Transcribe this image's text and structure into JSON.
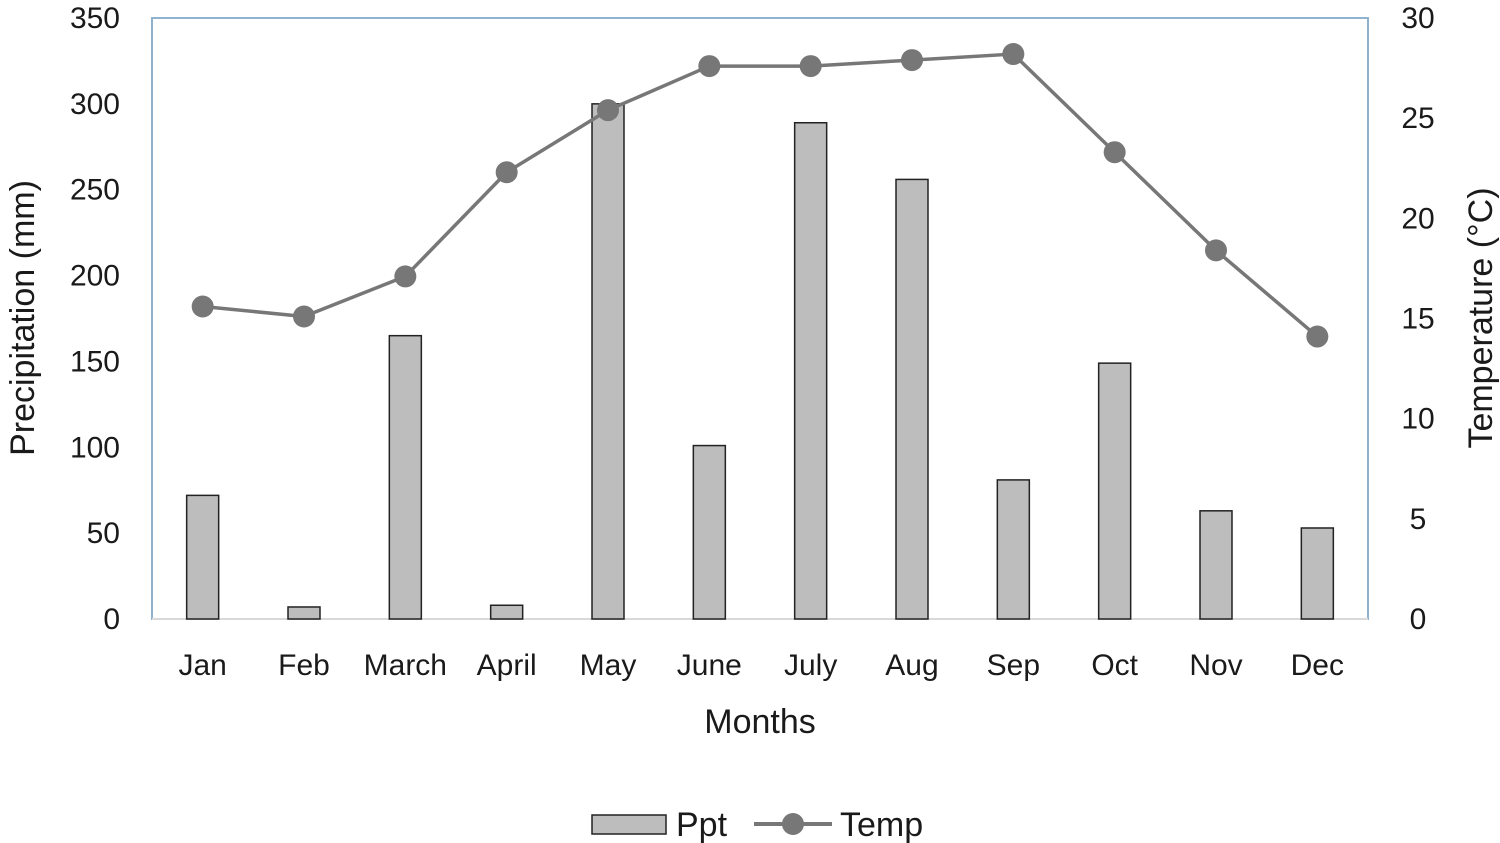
{
  "chart_data": {
    "type": "bar",
    "categories": [
      "Jan",
      "Feb",
      "March",
      "April",
      "May",
      "June",
      "July",
      "Aug",
      "Sep",
      "Oct",
      "Nov",
      "Dec"
    ],
    "series": [
      {
        "name": "Ppt",
        "type": "bar",
        "axis": "left",
        "values": [
          72,
          7,
          165,
          8,
          300,
          101,
          289,
          256,
          81,
          149,
          63,
          53
        ],
        "color": "#bdbdbd",
        "edge_color": "#222222"
      },
      {
        "name": "Temp",
        "type": "line",
        "axis": "right",
        "values": [
          15.6,
          15.1,
          17.1,
          22.3,
          25.4,
          27.6,
          27.6,
          27.9,
          28.2,
          23.3,
          18.4,
          14.1
        ],
        "color": "#777777"
      }
    ],
    "xlabel": "Months",
    "ylabel": "Precipitation (mm)",
    "y2label": "Temperature (°C)",
    "ylim": [
      0,
      350
    ],
    "y2lim": [
      0,
      30
    ],
    "yticks": [
      "0",
      "50",
      "100",
      "150",
      "200",
      "250",
      "300",
      "350"
    ],
    "y2ticks": [
      "0",
      "5",
      "10",
      "15",
      "20",
      "25",
      "30"
    ],
    "grid": false,
    "legend": "bottom-center",
    "frame_color": "#8fb3cf"
  }
}
